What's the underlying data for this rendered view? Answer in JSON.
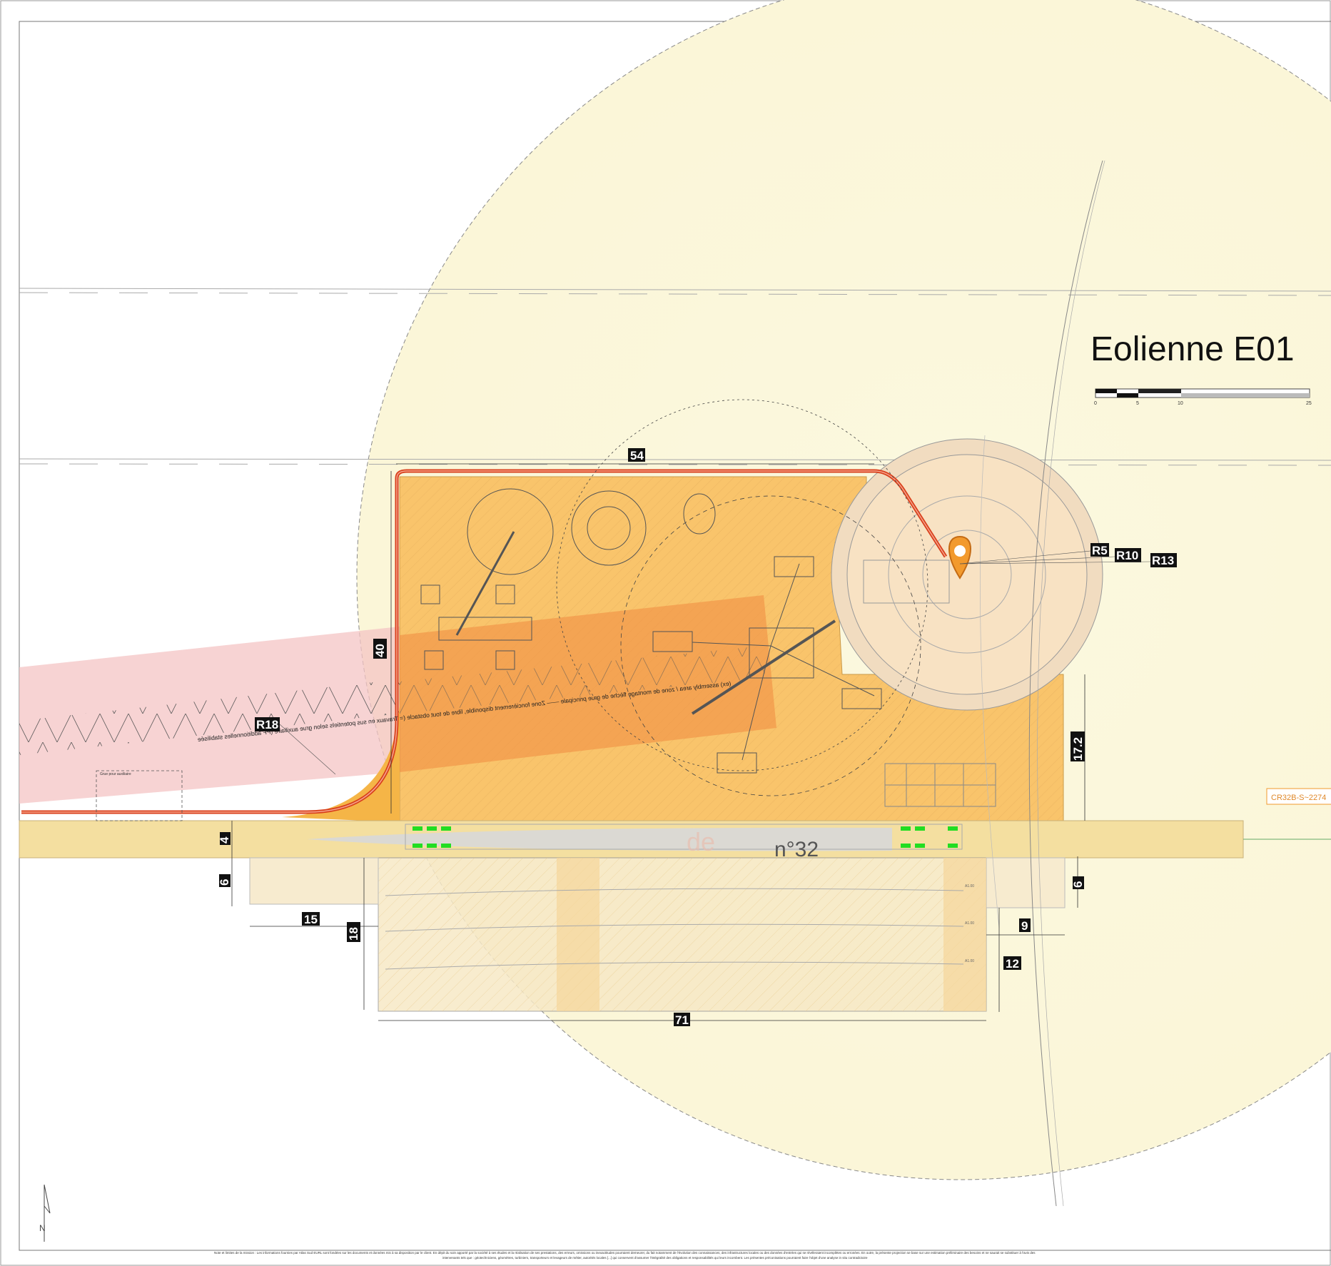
{
  "title": "Eolienne E01",
  "scale_bar": {
    "ticks": [
      "0",
      "5",
      "10",
      "25"
    ]
  },
  "dimensions": {
    "top_width": "54",
    "left_height": "40",
    "side_17": "17.2",
    "road_width": "4",
    "left_offset": "6",
    "right_offset": "6",
    "left_storage": "15",
    "storage_depth": "18",
    "right_gap": "9",
    "right_depth": "12",
    "storage_length": "71"
  },
  "radii": {
    "r5": "R5",
    "r10": "R10",
    "r13": "R13",
    "r18": "R18"
  },
  "labels": {
    "parcel": "CR32B-S~2274",
    "blade_number": "n°32",
    "blade_faint": "de",
    "crane_aux": "Grue pour auxiliaire",
    "zone_band": "(ex) assembly area / zone de montage flèche de grue principale —— Zone foncièrement disponible, libre de tout obstacle (= Travaux en sus potentiels selon grue auxiliaire (PF additionnelles stabilisée",
    "blade_tag_1": "A1.00",
    "blade_tag_2": "A1.00",
    "blade_tag_3": "A1.00",
    "north": "N"
  },
  "footer": {
    "line1": "Note et limites de la mission : Les informations fournies par Atlas Sud EURL sont fondées sur les documents et données mis à sa disposition par le client. En dépit du soin apporté par la société à ses études et la réalisation de ses prestations, des erreurs, omissions ou inexactitudes pourraient demeurer, du fait notamment de l'évolution des connaissances, des infrastructures locales ou des données d'entrées qui se révéleraient incomplètes ou erronées. En outre, la présente projection se base sur une estimation préliminaire des besoins et ne saurait se substituer à l'avis des",
    "line2": "intervenants tels que : géotechniciens, géomètres, turbiniers, transporteurs et levageurs de métier, autorités locales [...] qui conservent d'assumer l'intégralité des obligations et responsabilités qui leurs incombent. Les présentes préconisations pourraient faire l'objet d'une analyse in situ contradictoire"
  },
  "colors": {
    "swept_area": "#fbf8df",
    "platform": "#f9c46b",
    "road": "#f4dfa0",
    "pink_zone": "#f4c4c4",
    "crane_zone": "#f08a40",
    "access_line": "#d9401c",
    "marker": "#f29a2e",
    "green_marks": "#22dd22",
    "blade": "#d8d8d8"
  }
}
